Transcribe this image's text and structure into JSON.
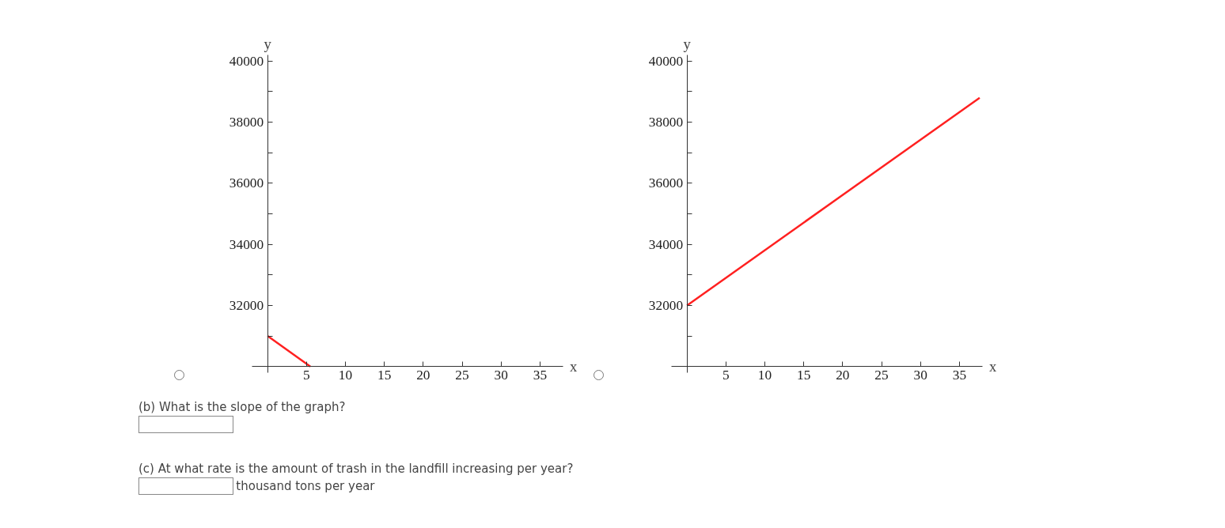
{
  "chart_data": [
    {
      "type": "line",
      "xlabel": "x",
      "ylabel": "y",
      "x": [
        0,
        5.5
      ],
      "values": [
        31000,
        30000
      ],
      "color": "#ff2020",
      "xlim": [
        -2,
        38
      ],
      "ylim": [
        29800,
        40200
      ],
      "xticks": [
        5,
        10,
        15,
        20,
        25,
        30,
        35
      ],
      "yticks": [
        {
          "value": 31000,
          "label": null
        },
        32000,
        {
          "value": 33000,
          "label": null
        },
        34000,
        {
          "value": 35000,
          "label": null
        },
        36000,
        {
          "value": 37000,
          "label": null
        },
        38000,
        {
          "value": 39000,
          "label": null
        },
        40000
      ],
      "grid": false,
      "marker": "none",
      "line_style": "solid"
    },
    {
      "type": "line",
      "xlabel": "x",
      "ylabel": "y",
      "x": [
        0,
        37.6
      ],
      "values": [
        32000,
        38800
      ],
      "color": "#ff2020",
      "xlim": [
        -2,
        38
      ],
      "ylim": [
        29800,
        40200
      ],
      "xticks": [
        5,
        10,
        15,
        20,
        25,
        30,
        35
      ],
      "yticks": [
        {
          "value": 31000,
          "label": null
        },
        32000,
        {
          "value": 33000,
          "label": null
        },
        34000,
        {
          "value": 35000,
          "label": null
        },
        36000,
        {
          "value": 37000,
          "label": null
        },
        38000,
        {
          "value": 39000,
          "label": null
        },
        40000
      ],
      "grid": false,
      "marker": "none",
      "line_style": "solid"
    },
    {
      "type": "other",
      "annotations": [
        "(b) What is the slope of the graph?",
        "(c) At what rate is the amount of trash in the landfill increasing per year?",
        "thousand tons per year"
      ]
    }
  ]
}
